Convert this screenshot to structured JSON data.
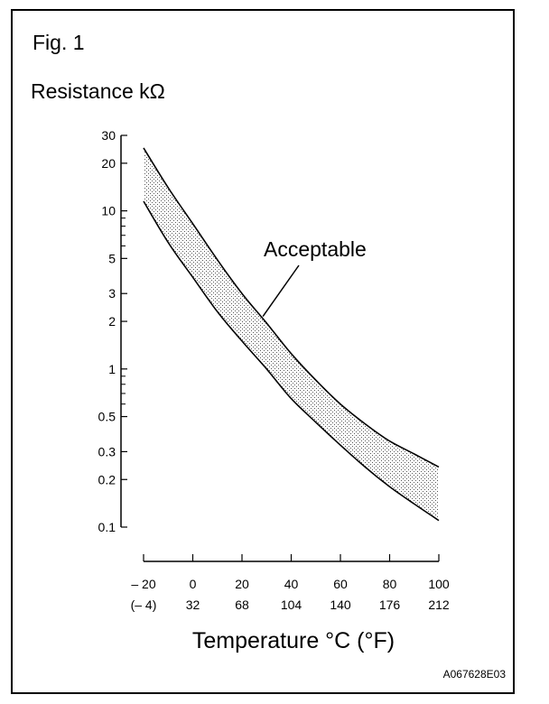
{
  "figure": {
    "label": "Fig. 1",
    "code": "A067628E03"
  },
  "chart_data": {
    "type": "area",
    "ylabel": "Resistance kΩ",
    "xlabel": "Temperature °C (°F)",
    "y_scale": "log",
    "ylim": [
      0.1,
      30
    ],
    "xlim": [
      -20,
      100
    ],
    "y_tick_labels": [
      "30",
      "20",
      "10",
      "5",
      "3",
      "2",
      "1",
      "0.5",
      "0.3",
      "0.2",
      "0.1"
    ],
    "y_tick_values": [
      30,
      20,
      10,
      5,
      3,
      2,
      1,
      0.5,
      0.3,
      0.2,
      0.1
    ],
    "y_minor_ticks": [
      9,
      8,
      7,
      6,
      0.9,
      0.8,
      0.7,
      0.6
    ],
    "x_tick_values": [
      -20,
      0,
      20,
      40,
      60,
      80,
      100
    ],
    "x_tick_labels_c": [
      "– 20",
      "0",
      "20",
      "40",
      "60",
      "80",
      "100"
    ],
    "x_tick_labels_f": [
      "(– 4)",
      "32",
      "68",
      "104",
      "140",
      "176",
      "212"
    ],
    "grid": false,
    "annotation": "Acceptable",
    "series": [
      {
        "bound": "upper",
        "x": [
          -20,
          -10,
          0,
          10,
          20,
          30,
          40,
          50,
          60,
          70,
          80,
          90,
          100
        ],
        "values": [
          25,
          14,
          8.3,
          4.9,
          3.0,
          1.95,
          1.25,
          0.85,
          0.6,
          0.45,
          0.35,
          0.29,
          0.24
        ]
      },
      {
        "bound": "lower",
        "x": [
          -20,
          -10,
          0,
          10,
          20,
          30,
          40,
          50,
          60,
          70,
          80,
          90,
          100
        ],
        "values": [
          11.5,
          6.3,
          3.8,
          2.3,
          1.5,
          1.0,
          0.65,
          0.46,
          0.33,
          0.24,
          0.18,
          0.14,
          0.11
        ]
      }
    ]
  }
}
